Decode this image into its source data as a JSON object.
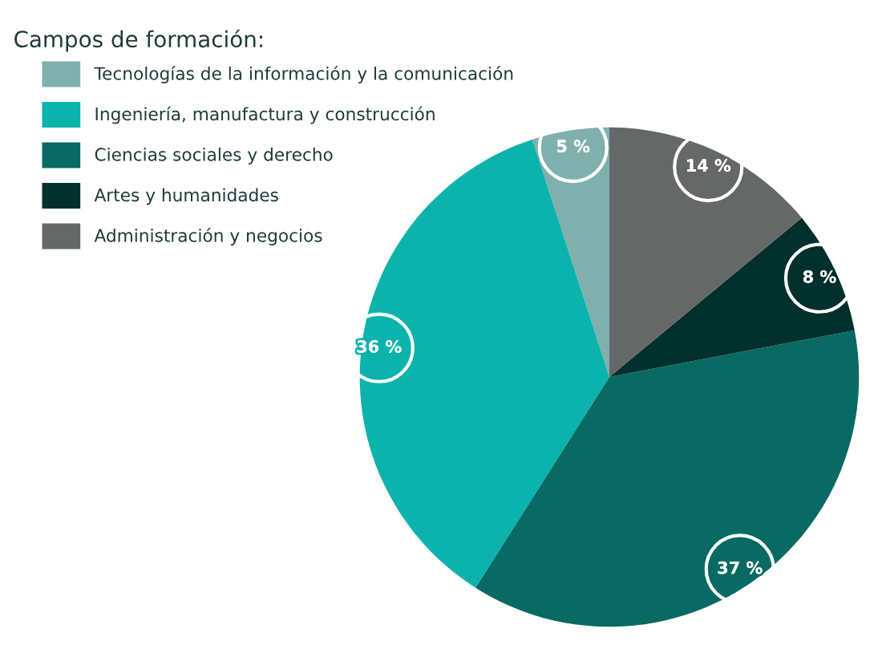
{
  "chart_data": {
    "type": "pie",
    "title": "Campos de formación:",
    "categories": [
      "Tecnologías de la información y la comunicación",
      "Ingeniería, manufactura y construcción",
      "Ciencias sociales y derecho",
      "Artes y humanidades",
      "Administración y negocios"
    ],
    "values": [
      5,
      36,
      37,
      8,
      14
    ],
    "colors": [
      "#7fb0ad",
      "#0bb3ac",
      "#086a63",
      "#02302d",
      "#666868"
    ],
    "value_labels": [
      "5 %",
      "36 %",
      "37 %",
      "8 %",
      "14 %"
    ],
    "legend": "top left"
  }
}
